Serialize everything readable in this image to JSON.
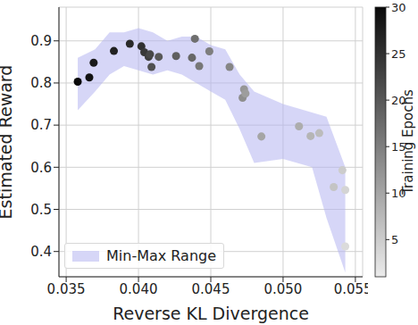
{
  "chart_data": {
    "type": "scatter",
    "x_label": "Reverse KL Divergence",
    "y_label": "Estimated Reward",
    "xlim": [
      0.0345,
      0.0555
    ],
    "xticks": [
      0.035,
      {
        "value": 0.04,
        "label": "0.040"
      },
      0.045,
      {
        "value": 0.05,
        "label": "0.050"
      },
      0.055
    ],
    "ylim": [
      0.34,
      0.98
    ],
    "yticks": [
      0.4,
      0.5,
      0.6,
      0.7,
      0.8,
      0.9
    ],
    "grid": true,
    "legend": "lower left",
    "points": {
      "x": [
        0.0358,
        0.0366,
        0.0369,
        0.0383,
        0.0394,
        0.0402,
        0.0404,
        0.0407,
        0.0408,
        0.0409,
        0.0414,
        0.0426,
        0.0437,
        0.0439,
        0.0442,
        0.0449,
        0.0463,
        0.0472,
        0.0473,
        0.0474,
        0.0485,
        0.0511,
        0.0519,
        0.0525,
        0.0535,
        0.0541,
        0.0543,
        0.0543
      ],
      "y": [
        0.803,
        0.813,
        0.848,
        0.876,
        0.893,
        0.887,
        0.873,
        0.862,
        0.868,
        0.838,
        0.862,
        0.864,
        0.86,
        0.905,
        0.84,
        0.875,
        0.838,
        0.765,
        0.785,
        0.775,
        0.673,
        0.697,
        0.674,
        0.681,
        0.553,
        0.593,
        0.546,
        0.412
      ],
      "epochs": [
        30,
        29,
        28,
        27,
        26,
        25,
        24,
        23,
        22,
        21,
        20,
        19,
        18,
        17,
        16,
        15,
        14,
        13,
        12,
        11,
        10,
        9,
        8,
        7,
        6,
        5,
        4,
        3
      ]
    },
    "error_bars": [
      {
        "x": 0.0543,
        "y": 0.412,
        "low": 0.34,
        "high": 0.48
      }
    ],
    "band": {
      "name": "Min-Max Range",
      "color": "#b4b4f0",
      "x": [
        0.0358,
        0.037,
        0.038,
        0.039,
        0.04,
        0.041,
        0.042,
        0.043,
        0.044,
        0.045,
        0.046,
        0.047,
        0.048,
        0.05,
        0.052,
        0.053,
        0.0543
      ],
      "lower": [
        0.735,
        0.78,
        0.82,
        0.84,
        0.83,
        0.82,
        0.83,
        0.82,
        0.8,
        0.78,
        0.76,
        0.69,
        0.61,
        0.62,
        0.6,
        0.48,
        0.35
      ],
      "upper": [
        0.86,
        0.88,
        0.92,
        0.92,
        0.93,
        0.92,
        0.9,
        0.91,
        0.91,
        0.89,
        0.88,
        0.82,
        0.78,
        0.75,
        0.73,
        0.72,
        0.6
      ]
    },
    "colorbar": {
      "label": "Training Epochs",
      "range": [
        1,
        30
      ],
      "ticks": [
        5,
        10,
        15,
        20,
        25,
        30
      ]
    }
  }
}
